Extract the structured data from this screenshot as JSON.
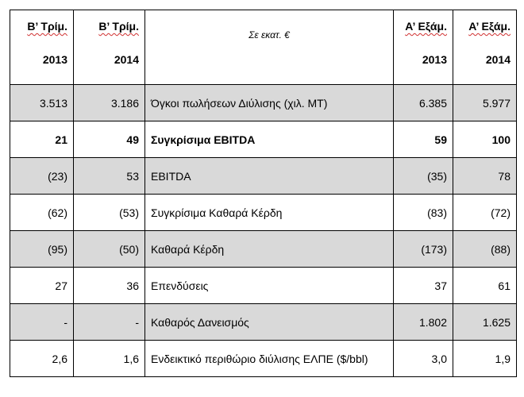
{
  "header": {
    "col1": {
      "period": "Β’ Τρίμ.",
      "year": "2013"
    },
    "col2": {
      "period": "Β’ Τρίμ.",
      "year": "2014"
    },
    "center": "Σε εκατ. €",
    "col4": {
      "period": "Α’ Εξάμ.",
      "year": "2013"
    },
    "col5": {
      "period": "Α’ Εξάμ.",
      "year": "2014"
    }
  },
  "rows": [
    {
      "q2_2013": "3.513",
      "q2_2014": "3.186",
      "label": "Όγκοι πωλήσεων Διύλισης (χιλ. ΜΤ)",
      "h1_2013": "6.385",
      "h1_2014": "5.977"
    },
    {
      "q2_2013": "21",
      "q2_2014": "49",
      "label": "Συγκρίσιμα EBITDA",
      "h1_2013": "59",
      "h1_2014": "100"
    },
    {
      "q2_2013": "(23)",
      "q2_2014": "53",
      "label": "EBITDA",
      "h1_2013": "(35)",
      "h1_2014": "78"
    },
    {
      "q2_2013": "(62)",
      "q2_2014": "(53)",
      "label": "Συγκρίσιμα Καθαρά Κέρδη",
      "h1_2013": "(83)",
      "h1_2014": "(72)"
    },
    {
      "q2_2013": "(95)",
      "q2_2014": "(50)",
      "label": "Καθαρά Κέρδη",
      "h1_2013": "(173)",
      "h1_2014": "(88)"
    },
    {
      "q2_2013": "27",
      "q2_2014": "36",
      "label": "Επενδύσεις",
      "h1_2013": "37",
      "h1_2014": "61"
    },
    {
      "q2_2013": "-",
      "q2_2014": "-",
      "label": "Καθαρός Δανεισμός",
      "h1_2013": "1.802",
      "h1_2014": "1.625"
    },
    {
      "q2_2013": "2,6",
      "q2_2014": "1,6",
      "label": "Ενδεικτικό περιθώριο διύλισης ΕΛΠΕ ($/bbl)",
      "h1_2013": "3,0",
      "h1_2014": "1,9"
    }
  ]
}
